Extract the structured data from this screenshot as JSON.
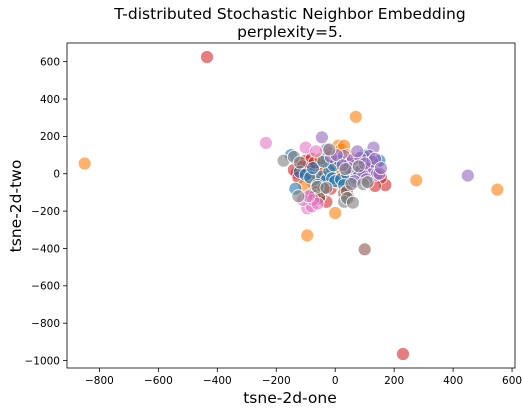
{
  "chart_data": {
    "type": "scatter",
    "title": "T-distributed Stochastic Neighbor Embedding",
    "subtitle": "perplexity=5.",
    "xlabel": "tsne-2d-one",
    "ylabel": "tsne-2d-two",
    "xlim": [
      -910,
      610
    ],
    "ylim": [
      -1040,
      700
    ],
    "x_ticks": [
      -800,
      -600,
      -400,
      -200,
      0,
      200,
      400,
      600
    ],
    "y_ticks": [
      -1000,
      -800,
      -600,
      -400,
      -200,
      0,
      200,
      400,
      600
    ],
    "grid": false,
    "legend": "none",
    "marker_alpha": 0.6,
    "colors": {
      "blue": "#1f77b4",
      "orange": "#ff7f0e",
      "red": "#d62728",
      "purple": "#9467bd",
      "brown": "#8c564b",
      "pink": "#e377c2",
      "gray": "#7f7f7f"
    },
    "series": [
      {
        "name": "red",
        "color": "#d62728",
        "points": [
          [
            -435,
            625
          ],
          [
            230,
            -965
          ],
          [
            170,
            -60
          ],
          [
            155,
            -20
          ],
          [
            135,
            -65
          ],
          [
            -15,
            -80
          ],
          [
            -30,
            -150
          ],
          [
            -110,
            5
          ],
          [
            -100,
            30
          ],
          [
            -90,
            10
          ],
          [
            -80,
            20
          ],
          [
            -70,
            -10
          ],
          [
            -60,
            40
          ],
          [
            -50,
            0
          ],
          [
            -105,
            -15
          ],
          [
            -95,
            60
          ],
          [
            -85,
            -25
          ],
          [
            -75,
            50
          ],
          [
            -65,
            15
          ],
          [
            -55,
            -35
          ],
          [
            -120,
            35
          ],
          [
            -130,
            5
          ],
          [
            -140,
            20
          ],
          [
            -125,
            -20
          ],
          [
            -115,
            55
          ],
          [
            -45,
            25
          ],
          [
            -40,
            -20
          ],
          [
            -35,
            10
          ],
          [
            -100,
            70
          ],
          [
            -90,
            45
          ],
          [
            -80,
            80
          ],
          [
            -110,
            40
          ],
          [
            -70,
            60
          ],
          [
            -60,
            -45
          ],
          [
            20,
            20
          ],
          [
            40,
            -10
          ],
          [
            -20,
            40
          ]
        ]
      },
      {
        "name": "orange",
        "color": "#ff7f0e",
        "points": [
          [
            -850,
            55
          ],
          [
            550,
            -85
          ],
          [
            275,
            -35
          ],
          [
            70,
            305
          ],
          [
            -95,
            -330
          ],
          [
            0,
            -210
          ],
          [
            -70,
            -60
          ],
          [
            -60,
            -20
          ],
          [
            -40,
            10
          ],
          [
            -30,
            60
          ],
          [
            -20,
            -30
          ],
          [
            -10,
            20
          ],
          [
            0,
            50
          ],
          [
            10,
            150
          ],
          [
            20,
            130
          ],
          [
            30,
            150
          ],
          [
            40,
            100
          ],
          [
            50,
            75
          ],
          [
            -80,
            -40
          ],
          [
            -50,
            80
          ],
          [
            -15,
            110
          ],
          [
            15,
            -50
          ],
          [
            25,
            10
          ],
          [
            60,
            20
          ],
          [
            75,
            40
          ],
          [
            -105,
            -60
          ]
        ]
      },
      {
        "name": "blue",
        "color": "#1f77b4",
        "points": [
          [
            -135,
            -80
          ],
          [
            -120,
            10
          ],
          [
            -100,
            -5
          ],
          [
            -85,
            -20
          ],
          [
            -45,
            -15
          ],
          [
            -30,
            -35
          ],
          [
            -20,
            15
          ],
          [
            -10,
            -25
          ],
          [
            0,
            -40
          ],
          [
            20,
            -30
          ],
          [
            40,
            0
          ],
          [
            60,
            20
          ],
          [
            80,
            45
          ],
          [
            95,
            95
          ],
          [
            110,
            75
          ],
          [
            125,
            40
          ],
          [
            140,
            60
          ],
          [
            150,
            70
          ],
          [
            -60,
            -60
          ],
          [
            -5,
            45
          ],
          [
            30,
            -60
          ],
          [
            70,
            -25
          ],
          [
            100,
            10
          ],
          [
            -150,
            100
          ],
          [
            -75,
            30
          ],
          [
            -40,
            65
          ],
          [
            15,
            70
          ],
          [
            110,
            100
          ]
        ]
      },
      {
        "name": "purple",
        "color": "#9467bd",
        "points": [
          [
            450,
            -10
          ],
          [
            -45,
            195
          ],
          [
            30,
            95
          ],
          [
            50,
            55
          ],
          [
            70,
            45
          ],
          [
            90,
            30
          ],
          [
            100,
            25
          ],
          [
            110,
            50
          ],
          [
            120,
            35
          ],
          [
            130,
            15
          ],
          [
            140,
            -5
          ],
          [
            150,
            0
          ],
          [
            130,
            140
          ],
          [
            60,
            75
          ],
          [
            80,
            10
          ],
          [
            95,
            -10
          ],
          [
            105,
            -30
          ],
          [
            115,
            95
          ],
          [
            125,
            65
          ],
          [
            135,
            80
          ],
          [
            85,
            85
          ],
          [
            45,
            30
          ],
          [
            65,
            -40
          ],
          [
            155,
            30
          ],
          [
            -15,
            90
          ],
          [
            5,
            100
          ],
          [
            25,
            45
          ],
          [
            75,
            120
          ],
          [
            100,
            55
          ],
          [
            -30,
            130
          ]
        ]
      },
      {
        "name": "brown",
        "color": "#8c564b",
        "points": [
          [
            100,
            -405
          ],
          [
            -80,
            -110
          ],
          [
            -60,
            -95
          ],
          [
            -50,
            -115
          ],
          [
            -40,
            -80
          ],
          [
            30,
            -105
          ],
          [
            40,
            -95
          ],
          [
            -70,
            -120
          ],
          [
            -55,
            -130
          ],
          [
            45,
            -130
          ]
        ]
      },
      {
        "name": "pink",
        "color": "#e377c2",
        "points": [
          [
            -235,
            165
          ],
          [
            -100,
            140
          ],
          [
            -95,
            -185
          ],
          [
            -80,
            -175
          ],
          [
            -110,
            -140
          ],
          [
            -75,
            -140
          ],
          [
            -60,
            -160
          ],
          [
            -90,
            -120
          ],
          [
            -65,
            120
          ]
        ]
      },
      {
        "name": "gray",
        "color": "#7f7f7f",
        "points": [
          [
            -175,
            70
          ],
          [
            -140,
            90
          ],
          [
            -120,
            60
          ],
          [
            -125,
            -120
          ],
          [
            30,
            -150
          ],
          [
            40,
            -130
          ],
          [
            55,
            -55
          ],
          [
            80,
            40
          ],
          [
            95,
            -55
          ],
          [
            -20,
            130
          ],
          [
            -60,
            -70
          ],
          [
            60,
            -155
          ],
          [
            110,
            -45
          ],
          [
            35,
            25
          ],
          [
            -30,
            -75
          ]
        ]
      }
    ]
  }
}
